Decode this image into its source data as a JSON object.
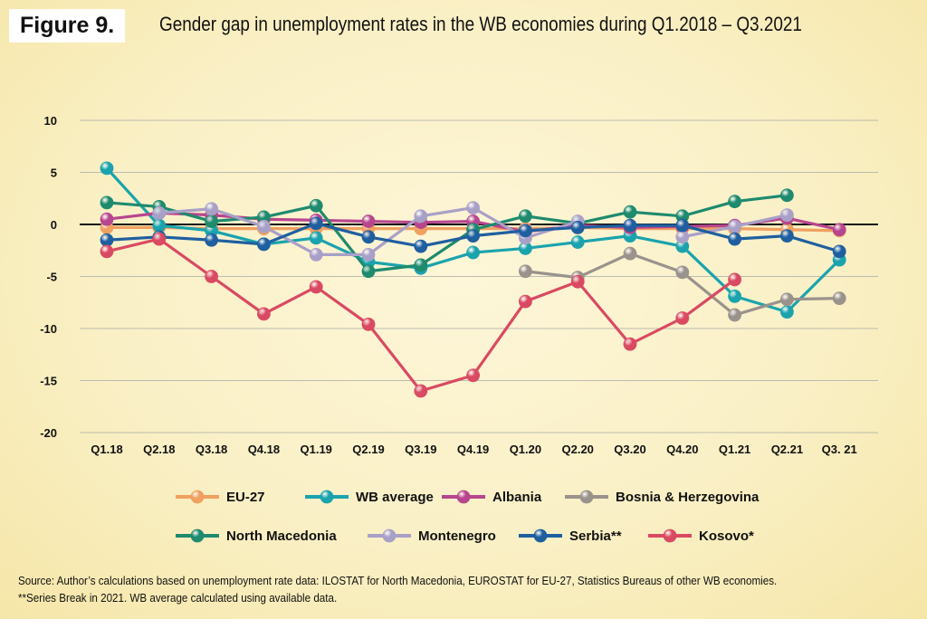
{
  "figure": {
    "label": "Figure 9.",
    "title": "Gender gap in unemployment rates in the WB economies during Q1.2018 – Q3.2021"
  },
  "source": {
    "line1": "Source: Author’s calculations based on unemployment rate data: ILOSTAT for North Macedonia, EUROSTAT for EU-27, Statistics Bureaus of other WB economies.",
    "line2": "**Series Break in 2021. WB average calculated using available data."
  },
  "chart_data": {
    "type": "line",
    "categories": [
      "Q1.18",
      "Q2.18",
      "Q3.18",
      "Q4.18",
      "Q1.19",
      "Q2.19",
      "Q3.19",
      "Q4.19",
      "Q1.20",
      "Q2.20",
      "Q3.20",
      "Q4.20",
      "Q1.21",
      "Q2.21",
      "Q3. 21"
    ],
    "ylim": [
      -20,
      10
    ],
    "yticks": [
      10,
      5,
      0,
      -5,
      -10,
      -15,
      -20
    ],
    "grid": true,
    "legend_position": "bottom",
    "series": [
      {
        "name": "EU-27",
        "color": "#f0a060",
        "values": [
          -0.3,
          -0.3,
          -0.4,
          -0.4,
          -0.4,
          -0.4,
          -0.4,
          -0.4,
          -0.4,
          -0.3,
          -0.4,
          -0.4,
          -0.4,
          -0.5,
          -0.6
        ]
      },
      {
        "name": "WB average",
        "color": "#1aa3ad",
        "values": [
          5.4,
          -0.1,
          -0.6,
          -1.9,
          -1.3,
          -3.6,
          -4.2,
          -2.7,
          -2.3,
          -1.7,
          -1.1,
          -2.1,
          -6.9,
          -8.4,
          -3.4
        ]
      },
      {
        "name": "Albania",
        "color": "#b8468f",
        "values": [
          0.5,
          1.1,
          0.9,
          0.5,
          0.4,
          0.3,
          0.2,
          0.3,
          -0.7,
          -0.1,
          -0.3,
          -0.2,
          -0.1,
          0.6,
          -0.5
        ]
      },
      {
        "name": "Bosnia & Herzegovina",
        "color": "#9a928c",
        "values": [
          null,
          null,
          null,
          null,
          null,
          null,
          null,
          null,
          -4.5,
          -5.1,
          -2.8,
          -4.6,
          -8.7,
          -7.2,
          -7.1
        ]
      },
      {
        "name": "North Macedonia",
        "color": "#1e8a6e",
        "values": [
          2.1,
          1.7,
          0.3,
          0.7,
          1.8,
          -4.5,
          -3.9,
          -0.5,
          0.8,
          0.1,
          1.2,
          0.8,
          2.2,
          2.8,
          null
        ]
      },
      {
        "name": "Montenegro",
        "color": "#a9a0c8",
        "values": [
          null,
          1.1,
          1.5,
          -0.2,
          -2.9,
          -2.9,
          0.8,
          1.6,
          -1.3,
          0.3,
          null,
          -1.2,
          -0.2,
          0.9,
          null
        ]
      },
      {
        "name": "Serbia**",
        "color": "#1f5fa0",
        "values": [
          -1.5,
          -1.2,
          -1.5,
          -1.9,
          0.1,
          -1.2,
          -2.1,
          -1.1,
          -0.6,
          -0.3,
          -0.1,
          -0.1,
          -1.4,
          -1.1,
          -2.6
        ]
      },
      {
        "name": "Kosovo*",
        "color": "#d94a62",
        "values": [
          -2.6,
          -1.4,
          -5.0,
          -8.6,
          -6.0,
          -9.6,
          -16.0,
          -14.5,
          -7.4,
          -5.5,
          -11.5,
          -9.0,
          -5.3,
          null,
          null
        ]
      }
    ]
  }
}
